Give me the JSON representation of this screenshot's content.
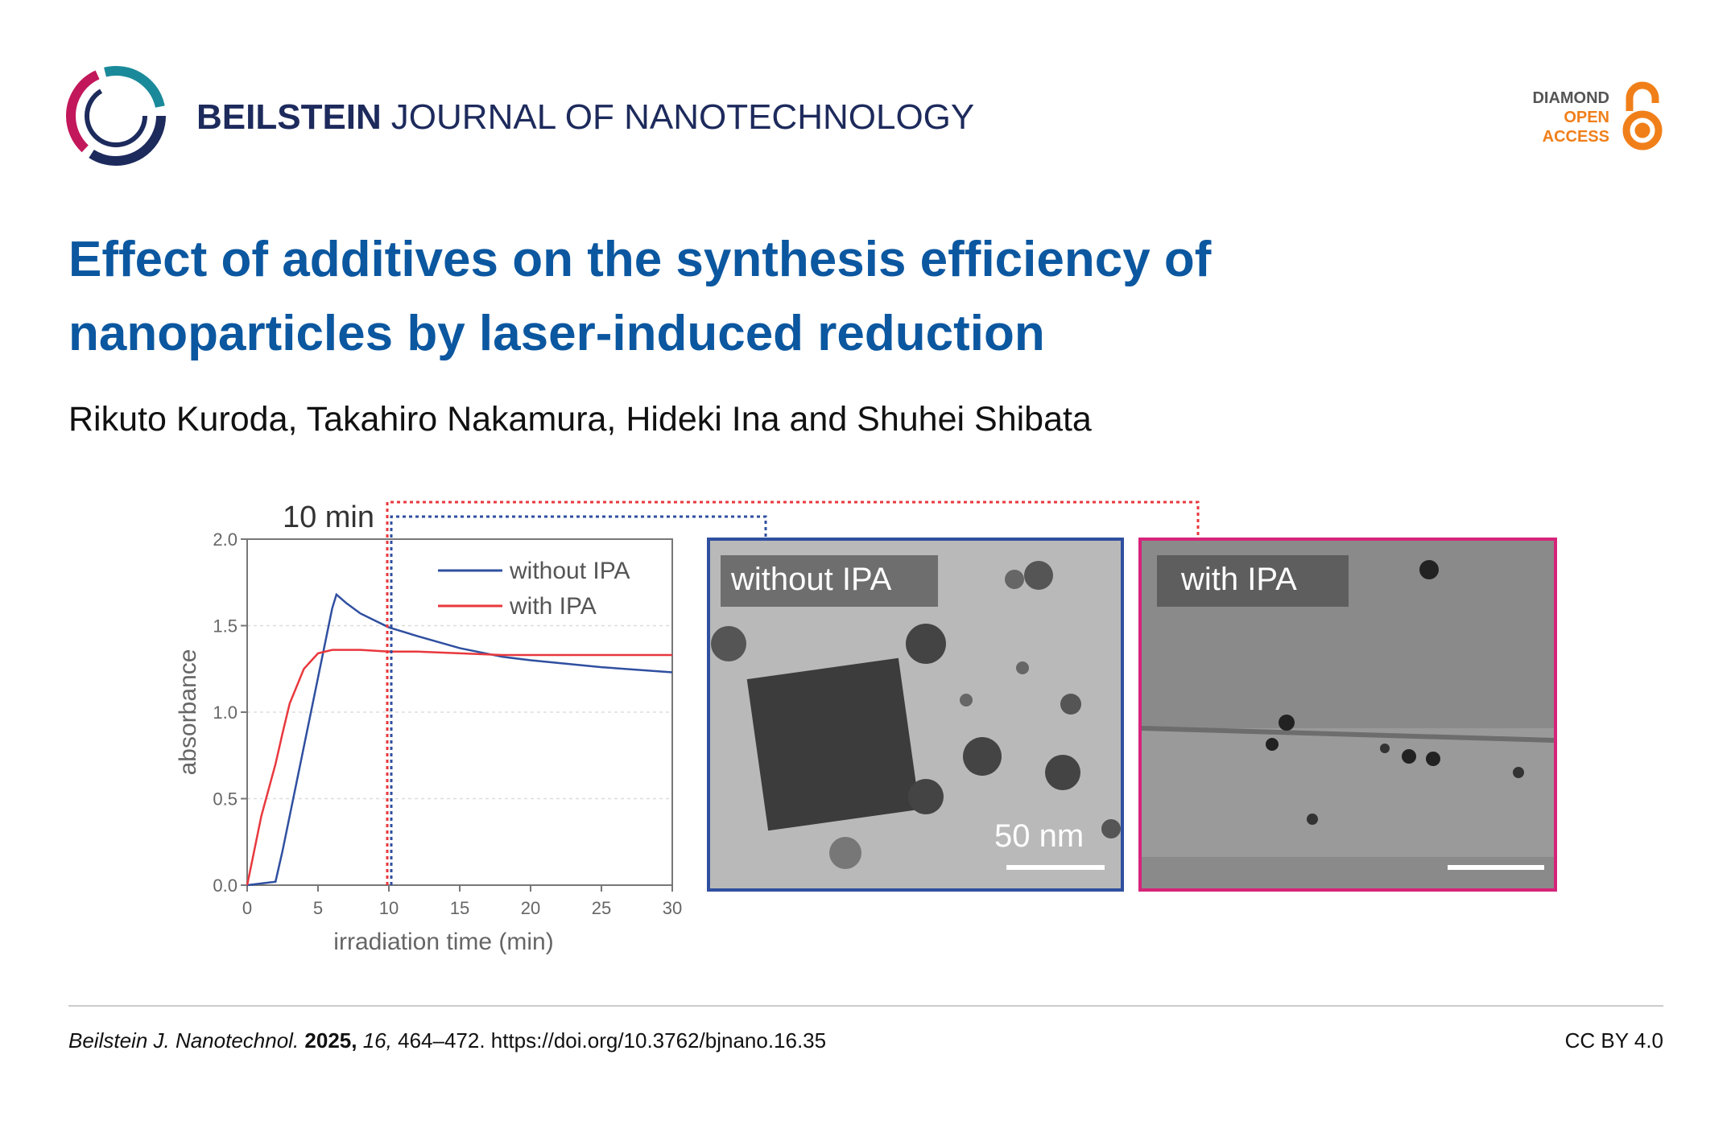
{
  "header": {
    "journal_bold": "BEILSTEIN",
    "journal_rest": "JOURNAL OF NANOTECHNOLOGY",
    "badge": [
      "DIAMOND",
      "OPEN",
      "ACCESS"
    ]
  },
  "title": [
    "Effect of additives on the synthesis efficiency of",
    "nanoparticles by laser-induced reduction"
  ],
  "authors": "Rikuto Kuroda, Takahiro Nakamura, Hideki Ina and Shuhei Shibata",
  "chart_data": {
    "type": "line",
    "x_label": "irradiation time (min)",
    "y_label": "absorbance",
    "x": [
      0,
      1,
      2,
      2.5,
      3,
      4,
      5,
      6,
      6.3,
      7,
      8,
      10,
      12,
      15,
      18,
      20,
      25,
      30
    ],
    "series": [
      {
        "name": "without IPA",
        "color": "#2f4fa0",
        "values": [
          0,
          0.01,
          0.02,
          0.2,
          0.4,
          0.8,
          1.2,
          1.6,
          1.68,
          1.63,
          1.57,
          1.49,
          1.44,
          1.37,
          1.32,
          1.3,
          1.26,
          1.23
        ]
      },
      {
        "name": "with IPA",
        "color": "#e8383d",
        "values": [
          0,
          0.4,
          0.7,
          0.88,
          1.05,
          1.25,
          1.34,
          1.36,
          1.36,
          1.36,
          1.36,
          1.35,
          1.35,
          1.34,
          1.33,
          1.33,
          1.33,
          1.33
        ]
      }
    ],
    "xlim": [
      0,
      30
    ],
    "xticks": [
      0,
      5,
      10,
      15,
      20,
      25,
      30
    ],
    "ylim": [
      0,
      2
    ],
    "yticks": [
      {
        "value": 0,
        "label": "0.0"
      },
      {
        "value": 0.5,
        "label": "0.5"
      },
      {
        "value": 1,
        "label": "1.0"
      },
      {
        "value": 1.5,
        "label": "1.5"
      },
      {
        "value": 2,
        "label": "2.0"
      }
    ],
    "grid": true,
    "annotation": {
      "text": "10 min",
      "x": 10
    }
  },
  "images": [
    {
      "label": "without IPA",
      "scale_bar": "50 nm"
    },
    {
      "label": "with IPA"
    }
  ],
  "footer": {
    "journal": "Beilstein J. Nanotechnol.",
    "year": "2025,",
    "volume": "16,",
    "rest": "464–472. https://doi.org/10.3762/bjnano.16.35",
    "license": "CC BY 4.0"
  }
}
